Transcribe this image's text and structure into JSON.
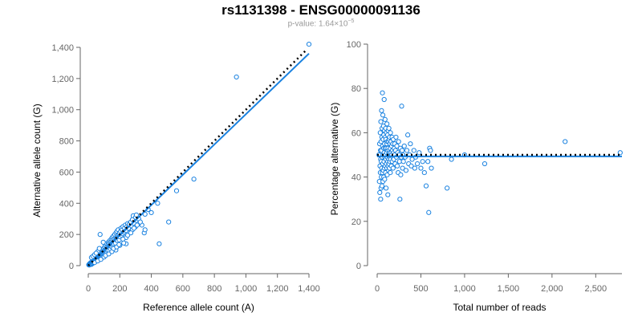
{
  "header": {
    "title": "rs1131398 - ENSG00000091136",
    "pvalue_prefix": "p-value: 1.64×10",
    "pvalue_exponent": "−5"
  },
  "colors": {
    "series": "#1a82e0",
    "reference": "#000000",
    "axis": "#666666"
  },
  "chart_data": [
    {
      "type": "scatter",
      "xlabel": "Reference allele count (A)",
      "ylabel": "Alternative allele count (G)",
      "xlim": [
        0,
        1400
      ],
      "ylim": [
        0,
        1400
      ],
      "xticks": [
        0,
        200,
        400,
        600,
        800,
        1000,
        1200,
        1400
      ],
      "yticks": [
        0,
        200,
        400,
        600,
        800,
        1000,
        1200,
        1400
      ],
      "xtick_labels": [
        "0",
        "200",
        "400",
        "600",
        "800",
        "1,000",
        "1,200",
        "1,400"
      ],
      "ytick_labels": [
        "0",
        "200",
        "400",
        "600",
        "800",
        "1,000",
        "1,200",
        "1,400"
      ],
      "grid": false,
      "points": [
        [
          3,
          5
        ],
        [
          5,
          8
        ],
        [
          6,
          4
        ],
        [
          8,
          10
        ],
        [
          10,
          6
        ],
        [
          10,
          14
        ],
        [
          12,
          9
        ],
        [
          14,
          12
        ],
        [
          15,
          18
        ],
        [
          16,
          10
        ],
        [
          18,
          15
        ],
        [
          20,
          8
        ],
        [
          20,
          22
        ],
        [
          22,
          18
        ],
        [
          24,
          12
        ],
        [
          25,
          28
        ],
        [
          26,
          20
        ],
        [
          28,
          15
        ],
        [
          30,
          25
        ],
        [
          30,
          32
        ],
        [
          32,
          22
        ],
        [
          34,
          18
        ],
        [
          35,
          38
        ],
        [
          36,
          28
        ],
        [
          38,
          20
        ],
        [
          40,
          35
        ],
        [
          40,
          44
        ],
        [
          42,
          30
        ],
        [
          44,
          25
        ],
        [
          45,
          48
        ],
        [
          46,
          38
        ],
        [
          48,
          30
        ],
        [
          50,
          55
        ],
        [
          50,
          42
        ],
        [
          52,
          35
        ],
        [
          54,
          60
        ],
        [
          55,
          48
        ],
        [
          56,
          40
        ],
        [
          58,
          52
        ],
        [
          60,
          62
        ],
        [
          60,
          45
        ],
        [
          62,
          38
        ],
        [
          64,
          55
        ],
        [
          65,
          70
        ],
        [
          66,
          50
        ],
        [
          68,
          42
        ],
        [
          70,
          58
        ],
        [
          70,
          75
        ],
        [
          72,
          62
        ],
        [
          74,
          48
        ],
        [
          75,
          65
        ],
        [
          76,
          80
        ],
        [
          78,
          55
        ],
        [
          80,
          70
        ],
        [
          80,
          60
        ],
        [
          82,
          90
        ],
        [
          84,
          65
        ],
        [
          85,
          75
        ],
        [
          86,
          52
        ],
        [
          88,
          85
        ],
        [
          90,
          70
        ],
        [
          90,
          100
        ],
        [
          92,
          78
        ],
        [
          94,
          60
        ],
        [
          95,
          88
        ],
        [
          96,
          72
        ],
        [
          98,
          110
        ],
        [
          100,
          82
        ],
        [
          100,
          95
        ],
        [
          102,
          68
        ],
        [
          104,
          120
        ],
        [
          105,
          90
        ],
        [
          106,
          80
        ],
        [
          108,
          100
        ],
        [
          110,
          130
        ],
        [
          110,
          85
        ],
        [
          112,
          95
        ],
        [
          115,
          110
        ],
        [
          116,
          140
        ],
        [
          118,
          88
        ],
        [
          120,
          105
        ],
        [
          120,
          120
        ],
        [
          122,
          98
        ],
        [
          125,
          135
        ],
        [
          126,
          112
        ],
        [
          128,
          150
        ],
        [
          130,
          100
        ],
        [
          130,
          125
        ],
        [
          132,
          140
        ],
        [
          135,
          115
        ],
        [
          136,
          160
        ],
        [
          138,
          130
        ],
        [
          140,
          108
        ],
        [
          140,
          150
        ],
        [
          142,
          125
        ],
        [
          145,
          140
        ],
        [
          146,
          170
        ],
        [
          148,
          135
        ],
        [
          150,
          155
        ],
        [
          150,
          120
        ],
        [
          152,
          180
        ],
        [
          155,
          145
        ],
        [
          156,
          165
        ],
        [
          158,
          130
        ],
        [
          160,
          150
        ],
        [
          160,
          190
        ],
        [
          162,
          140
        ],
        [
          165,
          170
        ],
        [
          166,
          155
        ],
        [
          168,
          200
        ],
        [
          170,
          160
        ],
        [
          172,
          145
        ],
        [
          175,
          180
        ],
        [
          176,
          210
        ],
        [
          178,
          165
        ],
        [
          180,
          175
        ],
        [
          182,
          220
        ],
        [
          185,
          160
        ],
        [
          186,
          195
        ],
        [
          188,
          180
        ],
        [
          190,
          230
        ],
        [
          192,
          175
        ],
        [
          195,
          200
        ],
        [
          196,
          165
        ],
        [
          198,
          210
        ],
        [
          200,
          185
        ],
        [
          205,
          220
        ],
        [
          208,
          240
        ],
        [
          210,
          195
        ],
        [
          215,
          230
        ],
        [
          218,
          205
        ],
        [
          220,
          250
        ],
        [
          225,
          215
        ],
        [
          230,
          240
        ],
        [
          235,
          260
        ],
        [
          240,
          225
        ],
        [
          245,
          250
        ],
        [
          250,
          270
        ],
        [
          255,
          240
        ],
        [
          260,
          265
        ],
        [
          270,
          280
        ],
        [
          275,
          255
        ],
        [
          280,
          295
        ],
        [
          285,
          320
        ],
        [
          290,
          270
        ],
        [
          300,
          310
        ],
        [
          305,
          325
        ],
        [
          320,
          300
        ],
        [
          340,
          260
        ],
        [
          355,
          210
        ],
        [
          360,
          230
        ],
        [
          20,
          52
        ],
        [
          30,
          60
        ],
        [
          40,
          70
        ],
        [
          60,
          90
        ],
        [
          50,
          80
        ],
        [
          70,
          110
        ],
        [
          40,
          20
        ],
        [
          60,
          30
        ],
        [
          80,
          40
        ],
        [
          100,
          55
        ],
        [
          95,
          150
        ],
        [
          75,
          200
        ],
        [
          110,
          65
        ],
        [
          130,
          75
        ],
        [
          150,
          90
        ],
        [
          175,
          100
        ],
        [
          200,
          130
        ],
        [
          240,
          180
        ],
        [
          260,
          210
        ],
        [
          280,
          230
        ],
        [
          240,
          140
        ],
        [
          160,
          110
        ],
        [
          180,
          120
        ],
        [
          220,
          170
        ],
        [
          300,
          250
        ],
        [
          320,
          270
        ],
        [
          195,
          135
        ],
        [
          225,
          145
        ],
        [
          250,
          195
        ],
        [
          270,
          210
        ],
        [
          290,
          240
        ],
        [
          310,
          260
        ],
        [
          330,
          280
        ],
        [
          360,
          330
        ],
        [
          380,
          360
        ],
        [
          400,
          340
        ],
        [
          440,
          400
        ],
        [
          450,
          140
        ],
        [
          510,
          280
        ],
        [
          560,
          480
        ],
        [
          670,
          555
        ],
        [
          940,
          1210
        ],
        [
          1400,
          1420
        ]
      ],
      "fit_line": [
        [
          0,
          0
        ],
        [
          1400,
          1360
        ]
      ],
      "reference_line": [
        [
          0,
          0
        ],
        [
          1380,
          1380
        ]
      ]
    },
    {
      "type": "scatter",
      "xlabel": "Total number of reads",
      "ylabel": "Percentage alternative (G)",
      "xlim": [
        0,
        2800
      ],
      "ylim": [
        0,
        100
      ],
      "xticks": [
        0,
        500,
        1000,
        1500,
        2000,
        2500
      ],
      "yticks": [
        0,
        20,
        40,
        60,
        80,
        100
      ],
      "xtick_labels": [
        "0",
        "500",
        "1,000",
        "1,500",
        "2,000",
        "2,500"
      ],
      "ytick_labels": [
        "0",
        "20",
        "40",
        "60",
        "80",
        "100"
      ],
      "grid": false,
      "points": [
        [
          20,
          50
        ],
        [
          25,
          38
        ],
        [
          28,
          55
        ],
        [
          30,
          33
        ],
        [
          32,
          45
        ],
        [
          35,
          60
        ],
        [
          36,
          42
        ],
        [
          38,
          52
        ],
        [
          40,
          30
        ],
        [
          40,
          48
        ],
        [
          42,
          65
        ],
        [
          44,
          35
        ],
        [
          45,
          56
        ],
        [
          46,
          47
        ],
        [
          48,
          40
        ],
        [
          50,
          70
        ],
        [
          50,
          52
        ],
        [
          52,
          44
        ],
        [
          54,
          58
        ],
        [
          55,
          36
        ],
        [
          56,
          62
        ],
        [
          58,
          49
        ],
        [
          60,
          78
        ],
        [
          60,
          42
        ],
        [
          62,
          54
        ],
        [
          64,
          46
        ],
        [
          65,
          68
        ],
        [
          66,
          38
        ],
        [
          68,
          57
        ],
        [
          70,
          50
        ],
        [
          70,
          43
        ],
        [
          72,
          63
        ],
        [
          74,
          53
        ],
        [
          75,
          40
        ],
        [
          76,
          59
        ],
        [
          78,
          47
        ],
        [
          80,
          75
        ],
        [
          80,
          51
        ],
        [
          82,
          44
        ],
        [
          84,
          61
        ],
        [
          85,
          55
        ],
        [
          86,
          39
        ],
        [
          88,
          49
        ],
        [
          90,
          66
        ],
        [
          90,
          53
        ],
        [
          92,
          45
        ],
        [
          94,
          58
        ],
        [
          95,
          50
        ],
        [
          96,
          42
        ],
        [
          98,
          62
        ],
        [
          100,
          48
        ],
        [
          100,
          57
        ],
        [
          102,
          35
        ],
        [
          104,
          53
        ],
        [
          105,
          46
        ],
        [
          106,
          60
        ],
        [
          108,
          51
        ],
        [
          110,
          44
        ],
        [
          110,
          55
        ],
        [
          112,
          64
        ],
        [
          114,
          49
        ],
        [
          115,
          41
        ],
        [
          116,
          56
        ],
        [
          118,
          52
        ],
        [
          120,
          47
        ],
        [
          120,
          59
        ],
        [
          122,
          32
        ],
        [
          124,
          53
        ],
        [
          125,
          45
        ],
        [
          126,
          61
        ],
        [
          128,
          50
        ],
        [
          130,
          43
        ],
        [
          130,
          56
        ],
        [
          132,
          48
        ],
        [
          134,
          62
        ],
        [
          135,
          52
        ],
        [
          136,
          46
        ],
        [
          138,
          57
        ],
        [
          140,
          50
        ],
        [
          140,
          44
        ],
        [
          142,
          58
        ],
        [
          144,
          51
        ],
        [
          145,
          47
        ],
        [
          146,
          55
        ],
        [
          148,
          49
        ],
        [
          150,
          53
        ],
        [
          150,
          42
        ],
        [
          152,
          60
        ],
        [
          155,
          48
        ],
        [
          158,
          56
        ],
        [
          160,
          51
        ],
        [
          162,
          45
        ],
        [
          165,
          54
        ],
        [
          168,
          50
        ],
        [
          170,
          58
        ],
        [
          172,
          47
        ],
        [
          175,
          52
        ],
        [
          178,
          55
        ],
        [
          180,
          49
        ],
        [
          182,
          44
        ],
        [
          185,
          57
        ],
        [
          188,
          51
        ],
        [
          190,
          48
        ],
        [
          195,
          53
        ],
        [
          200,
          50
        ],
        [
          200,
          55
        ],
        [
          205,
          46
        ],
        [
          210,
          52
        ],
        [
          215,
          58
        ],
        [
          220,
          49
        ],
        [
          225,
          54
        ],
        [
          230,
          45
        ],
        [
          235,
          51
        ],
        [
          240,
          42
        ],
        [
          245,
          56
        ],
        [
          250,
          50
        ],
        [
          255,
          47
        ],
        [
          260,
          30
        ],
        [
          265,
          53
        ],
        [
          270,
          41
        ],
        [
          275,
          49
        ],
        [
          280,
          72
        ],
        [
          285,
          52
        ],
        [
          290,
          44
        ],
        [
          295,
          50
        ],
        [
          300,
          47
        ],
        [
          310,
          54
        ],
        [
          320,
          49
        ],
        [
          330,
          43
        ],
        [
          340,
          52
        ],
        [
          350,
          59
        ],
        [
          360,
          46
        ],
        [
          370,
          50
        ],
        [
          380,
          55
        ],
        [
          390,
          45
        ],
        [
          400,
          48
        ],
        [
          420,
          52
        ],
        [
          430,
          44
        ],
        [
          440,
          49
        ],
        [
          460,
          46
        ],
        [
          480,
          51
        ],
        [
          500,
          44
        ],
        [
          520,
          47
        ],
        [
          540,
          42
        ],
        [
          560,
          36
        ],
        [
          580,
          47
        ],
        [
          590,
          24
        ],
        [
          600,
          53
        ],
        [
          610,
          52
        ],
        [
          620,
          44
        ],
        [
          800,
          35
        ],
        [
          850,
          48
        ],
        [
          1000,
          50
        ],
        [
          1230,
          46
        ],
        [
          2150,
          56
        ],
        [
          2780,
          51
        ]
      ],
      "fit_line": [
        [
          0,
          49.3
        ],
        [
          2800,
          49.3
        ]
      ],
      "reference_line": [
        [
          0,
          50
        ],
        [
          2800,
          50
        ]
      ]
    }
  ]
}
